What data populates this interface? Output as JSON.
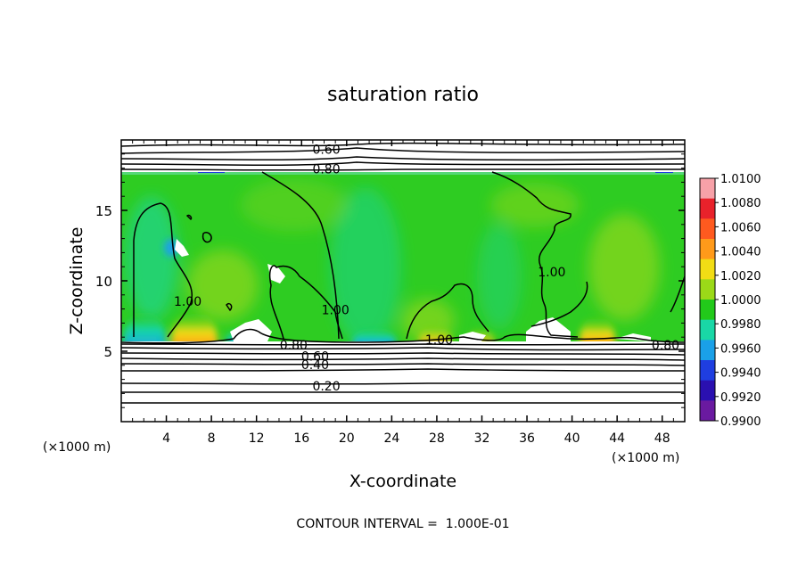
{
  "chart_data": {
    "type": "heatmap",
    "title": "saturation ratio",
    "xlabel": "X-coordinate",
    "ylabel": "Z-coordinate",
    "x_unit_left": "(×1000 m)",
    "x_unit_right": "(×1000 m)",
    "xlim": [
      0,
      50
    ],
    "ylim": [
      0,
      20
    ],
    "x_ticks": [
      4,
      8,
      12,
      16,
      20,
      24,
      28,
      32,
      36,
      40,
      44,
      48
    ],
    "y_ticks": [
      5,
      10,
      15
    ],
    "colorbar": {
      "levels": [
        "1.0100",
        "1.0080",
        "1.0060",
        "1.0040",
        "1.0020",
        "1.0000",
        "0.9980",
        "0.9960",
        "0.9940",
        "0.9920",
        "0.9900"
      ],
      "colors": [
        "#f7a1a8",
        "#e8222b",
        "#ff5a1f",
        "#ff9a1a",
        "#f2dd15",
        "#9bd918",
        "#22c91a",
        "#19d7a6",
        "#1aa0e8",
        "#1f3ee0",
        "#2a10b0",
        "#6a1aa0"
      ]
    },
    "contour_labels": [
      {
        "text": "0.60",
        "x": 18.2,
        "z": 19.4
      },
      {
        "text": "0.80",
        "x": 18.2,
        "z": 18.0
      },
      {
        "text": "1.00",
        "x": 5.9,
        "z": 8.6
      },
      {
        "text": "1.00",
        "x": 19.0,
        "z": 8.0
      },
      {
        "text": "1.00",
        "x": 28.2,
        "z": 5.9
      },
      {
        "text": "1.00",
        "x": 38.2,
        "z": 10.7
      },
      {
        "text": "0.80",
        "x": 15.3,
        "z": 5.5
      },
      {
        "text": "0.60",
        "x": 17.2,
        "z": 4.7
      },
      {
        "text": "0.40",
        "x": 17.2,
        "z": 4.1
      },
      {
        "text": "0.20",
        "x": 18.2,
        "z": 2.6
      },
      {
        "text": "0.80",
        "x": 48.3,
        "z": 5.5
      }
    ],
    "footer": "CONTOUR INTERVAL =  1.000E-01"
  }
}
